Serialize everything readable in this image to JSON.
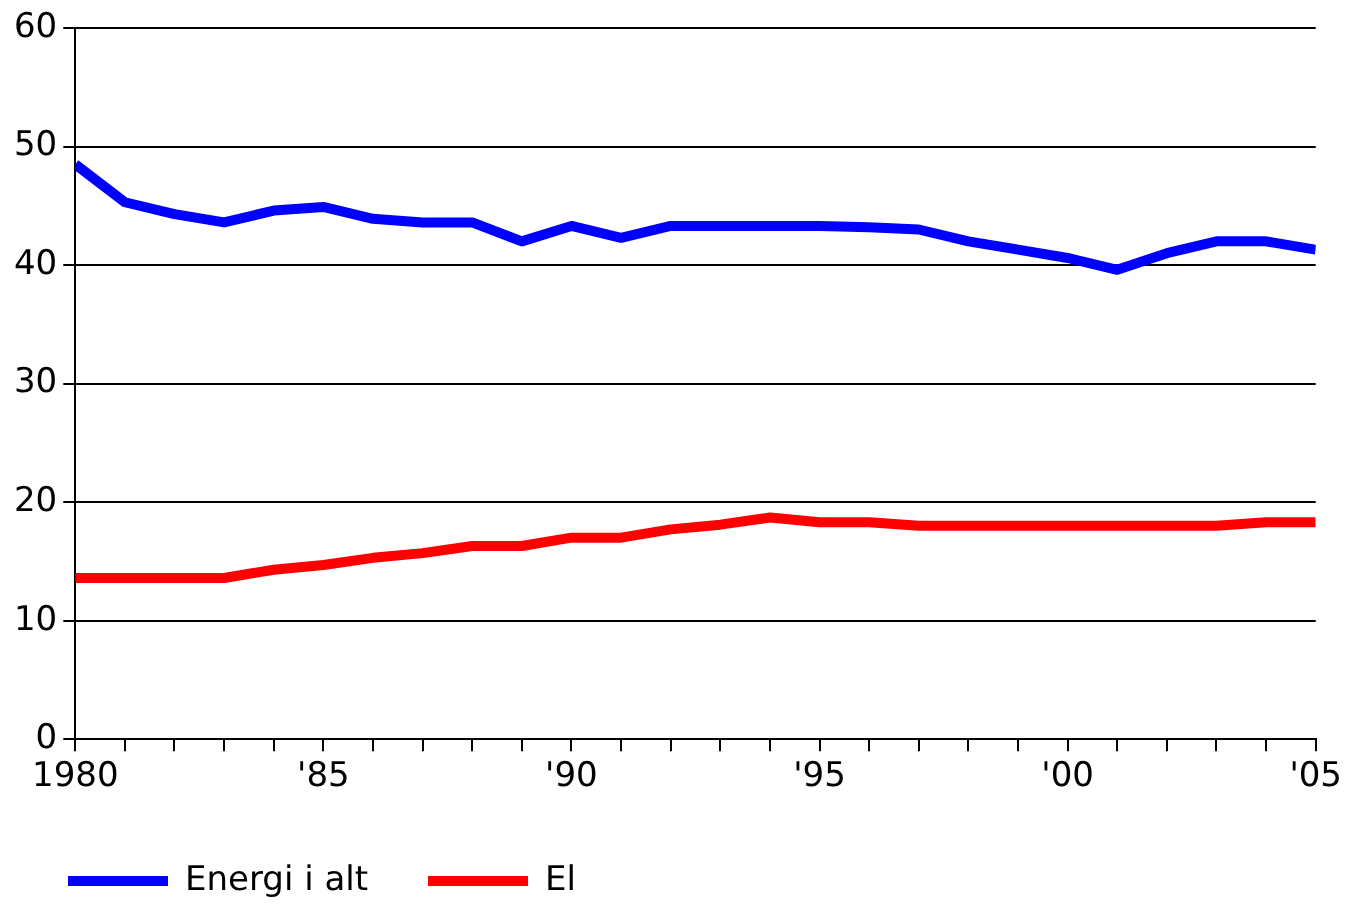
{
  "chart_data": {
    "type": "line",
    "x": [
      1980,
      1981,
      1982,
      1983,
      1984,
      1985,
      1986,
      1987,
      1988,
      1989,
      1990,
      1991,
      1992,
      1993,
      1994,
      1995,
      1996,
      1997,
      1998,
      1999,
      2000,
      2001,
      2002,
      2003,
      2004,
      2005
    ],
    "series": [
      {
        "name": "Energi i alt",
        "color": "#0000ff",
        "values": [
          48.5,
          45.3,
          44.3,
          43.6,
          44.6,
          44.9,
          43.9,
          43.6,
          43.6,
          42,
          43.3,
          42.3,
          43.3,
          43.3,
          43.3,
          43.3,
          43.2,
          43,
          42,
          41.3,
          40.6,
          39.6,
          41,
          42,
          42,
          41.3
        ]
      },
      {
        "name": "El",
        "color": "#ff0000",
        "values": [
          13.6,
          13.6,
          13.6,
          13.6,
          14.3,
          14.7,
          15.3,
          15.7,
          16.3,
          16.3,
          17,
          17,
          17.7,
          18.1,
          18.7,
          18.3,
          18.3,
          18,
          18,
          18,
          18,
          18,
          18,
          18,
          18.3,
          18.3
        ]
      }
    ],
    "xlim": [
      1980,
      2005
    ],
    "xticks": [
      {
        "value": 1980,
        "label": "1980"
      },
      {
        "value": 1981,
        "label": null
      },
      {
        "value": 1982,
        "label": null
      },
      {
        "value": 1983,
        "label": null
      },
      {
        "value": 1984,
        "label": null
      },
      {
        "value": 1985,
        "label": "'85"
      },
      {
        "value": 1986,
        "label": null
      },
      {
        "value": 1987,
        "label": null
      },
      {
        "value": 1988,
        "label": null
      },
      {
        "value": 1989,
        "label": null
      },
      {
        "value": 1990,
        "label": "'90"
      },
      {
        "value": 1991,
        "label": null
      },
      {
        "value": 1992,
        "label": null
      },
      {
        "value": 1993,
        "label": null
      },
      {
        "value": 1994,
        "label": null
      },
      {
        "value": 1995,
        "label": "'95"
      },
      {
        "value": 1996,
        "label": null
      },
      {
        "value": 1997,
        "label": null
      },
      {
        "value": 1998,
        "label": null
      },
      {
        "value": 1999,
        "label": null
      },
      {
        "value": 2000,
        "label": "'00"
      },
      {
        "value": 2001,
        "label": null
      },
      {
        "value": 2002,
        "label": null
      },
      {
        "value": 2003,
        "label": null
      },
      {
        "value": 2004,
        "label": null
      },
      {
        "value": 2005,
        "label": "'05"
      }
    ],
    "ylim": [
      0,
      60
    ],
    "yticks": [
      0,
      10,
      20,
      30,
      40,
      50,
      60
    ],
    "grid": "y",
    "legend": "bottom left",
    "marker": "none",
    "line_style": "solid"
  }
}
